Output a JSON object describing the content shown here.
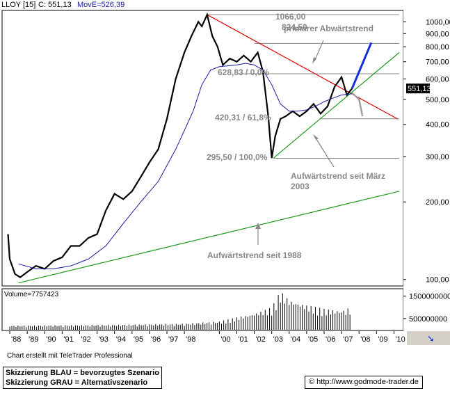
{
  "header": {
    "symbol": "LLOY [15]",
    "close_text": "C: 551,13",
    "ma_text": "MovE=526,39"
  },
  "credit": "Chart erstellt mit TeleTrader Professional",
  "legend_lines": [
    "Skizzierung BLAU = bevorzugtes Szenario",
    "Skizzierung GRAU = Alternativszenario"
  ],
  "url": "© http://www.godmode-trader.de",
  "colors": {
    "price": "#000000",
    "moving_average": "#1a1aa0",
    "red_trend": "#dd0000",
    "green_trend": "#1a9a1a",
    "blue_scenario": "#1030e0",
    "gray_scenario": "#a0a0a0"
  },
  "chart_data": {
    "type": "line",
    "title": "LLOY [15]",
    "scale": "log",
    "ylim": [
      95,
      1100
    ],
    "y_ticks": [
      100,
      200,
      300,
      400,
      500,
      600,
      700,
      800,
      900,
      1000
    ],
    "y_tick_labels": [
      "100,00",
      "200,00",
      "300,00",
      "400,00",
      "500,00",
      "600,00",
      "700,00",
      "800,00",
      "900,00",
      "1000,00"
    ],
    "last_price_label": "551,13",
    "x_tick_labels": [
      "'88",
      "'89",
      "'90",
      "'91",
      "'92",
      "'93",
      "'94",
      "'95",
      "'96",
      "'97",
      "'98",
      "'00",
      "'01",
      "'02",
      "'03",
      "'04",
      "'05",
      "'06",
      "'07",
      "'08",
      "'09",
      "'10"
    ],
    "x_tick_years": [
      1988,
      1989,
      1990,
      1991,
      1992,
      1993,
      1994,
      1995,
      1996,
      1997,
      1998,
      2000,
      2001,
      2002,
      2003,
      2004,
      2005,
      2006,
      2007,
      2008,
      2009,
      2010
    ],
    "xlim": [
      1987.6,
      2010.5
    ],
    "series": [
      {
        "name": "LLOY",
        "x": [
          1987.9,
          1988.0,
          1988.3,
          1988.6,
          1989.0,
          1989.5,
          1990.0,
          1990.5,
          1991.0,
          1991.5,
          1992.0,
          1992.5,
          1993.0,
          1993.5,
          1994.0,
          1994.5,
          1995.0,
          1995.5,
          1996.0,
          1996.5,
          1997.0,
          1997.5,
          1998.0,
          1998.4,
          1998.8,
          1999.0,
          1999.3,
          1999.6,
          1999.9,
          2000.2,
          2000.6,
          2001.0,
          2001.4,
          2001.8,
          2002.2,
          2002.5,
          2002.8,
          2003.0,
          2003.2,
          2003.5,
          2003.8,
          2004.2,
          2004.6,
          2005.0,
          2005.4,
          2005.8,
          2006.2,
          2006.6,
          2007.0,
          2007.3,
          2007.6
        ],
        "values": [
          150,
          120,
          105,
          102,
          107,
          113,
          110,
          118,
          122,
          135,
          135,
          145,
          150,
          185,
          215,
          205,
          220,
          250,
          285,
          320,
          420,
          600,
          760,
          880,
          1000,
          960,
          1066,
          880,
          800,
          680,
          720,
          700,
          740,
          700,
          760,
          640,
          430,
          296,
          360,
          420,
          430,
          450,
          430,
          450,
          480,
          440,
          470,
          560,
          610,
          520,
          551
        ]
      },
      {
        "name": "MovE",
        "x": [
          1988.5,
          1989.5,
          1990.5,
          1991.5,
          1992.5,
          1993.5,
          1994.5,
          1995.5,
          1996.5,
          1997.5,
          1998.5,
          1999.0,
          1999.5,
          2000.0,
          2000.5,
          2001.0,
          2001.5,
          2002.0,
          2002.5,
          2003.0,
          2003.5,
          2004.0,
          2004.5,
          2005.0,
          2005.5,
          2006.0,
          2006.5,
          2007.0,
          2007.6
        ],
        "values": [
          115,
          110,
          110,
          113,
          120,
          135,
          165,
          200,
          240,
          320,
          450,
          570,
          650,
          670,
          675,
          680,
          690,
          680,
          650,
          570,
          480,
          450,
          450,
          455,
          470,
          490,
          505,
          520,
          526
        ]
      },
      {
        "name": "Volume",
        "x": [
          1988,
          1990,
          1992,
          1994,
          1996,
          1998,
          2000,
          2001,
          2002,
          2003,
          2003.5,
          2004,
          2005,
          2006,
          2007,
          2007.6
        ],
        "values": [
          150000000,
          160000000,
          170000000,
          180000000,
          200000000,
          220000000,
          300000000,
          450000000,
          600000000,
          800000000,
          1400000000,
          1100000000,
          900000000,
          750000000,
          700000000,
          800000000
        ]
      }
    ],
    "trendlines": [
      {
        "label": "primärer Abwärtstrend",
        "from": [
          1999.3,
          1066
        ],
        "to": [
          2010.2,
          420
        ]
      },
      {
        "label": "Aufwärtstrend seit März 2003",
        "from": [
          2003.1,
          296
        ],
        "to": [
          2010.3,
          760
        ]
      },
      {
        "label": "Aufwärtstrend seit 1988",
        "from": [
          1988.5,
          97
        ],
        "to": [
          2010.3,
          220
        ]
      }
    ],
    "levels": [
      {
        "text": "1066,00",
        "value": 1066,
        "line_from": 1999.3,
        "line_to": 2010.3
      },
      {
        "text": "824,50",
        "value": 824.5,
        "line_from": 2002.0,
        "line_to": 2010.3
      },
      {
        "text": "628,83 / 0,0%",
        "value": 628.83,
        "line_from": 2001.0,
        "line_to": 2010.3
      },
      {
        "text": "420,31 / 61,8%",
        "value": 420.31,
        "line_from": 2005.8,
        "line_to": 2010.3
      },
      {
        "text": "295,50 / 100,0%",
        "value": 295.5,
        "line_from": 2003.1,
        "line_to": 2010.3
      }
    ],
    "volume_label": "Volume=7757423",
    "volume_ticks": [
      500000000,
      1500000000
    ],
    "volume_tick_labels": [
      "500000000",
      "1500000000"
    ],
    "scenarios": [
      {
        "name": "BLAU",
        "points": [
          [
            2007.6,
            551
          ],
          [
            2008.7,
            830
          ]
        ]
      },
      {
        "name": "GRAU",
        "points": [
          [
            2007.6,
            530
          ],
          [
            2008.0,
            500
          ],
          [
            2008.2,
            430
          ]
        ]
      }
    ]
  }
}
